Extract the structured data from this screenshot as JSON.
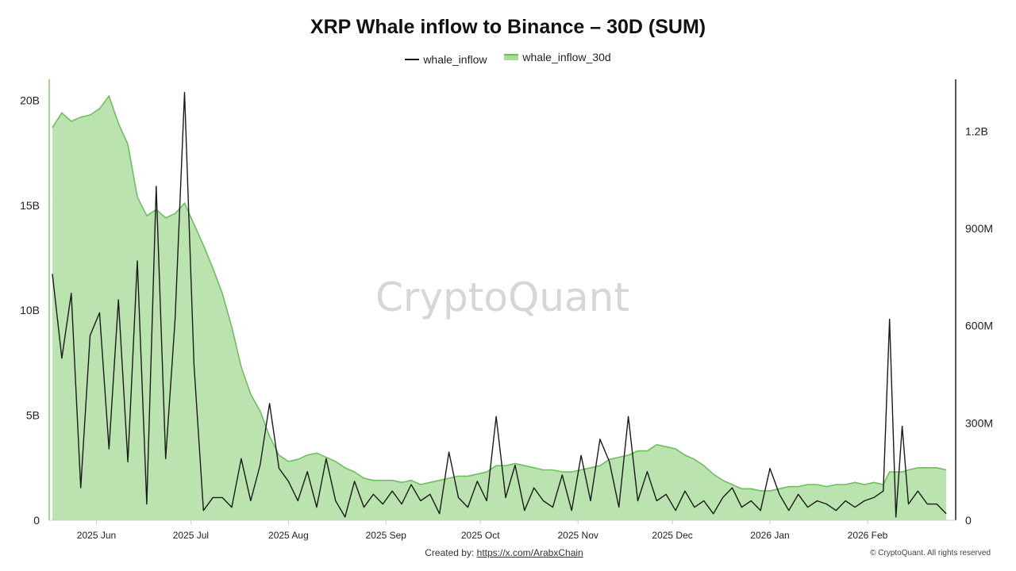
{
  "chart_data": {
    "type": "line",
    "title": "XRP Whale inflow to Binance – 30D (SUM)",
    "watermark": "CryptoQuant",
    "footer": {
      "created_by_label": "Created by:",
      "created_by_link": "https://x.com/ArabxChain",
      "copyright": "© CryptoQuant. All rights reserved"
    },
    "x_ticks": [
      "2025 Jun",
      "2025 Jul",
      "2025 Aug",
      "2025 Sep",
      "2025 Oct",
      "2025 Nov",
      "2025 Dec",
      "2026 Jan",
      "2026 Feb"
    ],
    "left_axis": {
      "ticks": [
        "0",
        "5B",
        "10B",
        "15B",
        "20B"
      ],
      "ylim": [
        0,
        21000000000
      ]
    },
    "right_axis": {
      "ticks": [
        "0",
        "300M",
        "600M",
        "900M",
        "1.2B"
      ],
      "ylim": [
        0,
        1360000000
      ]
    },
    "legend_position": "top-center",
    "grid": false,
    "colors": {
      "line": "#1a1a1a",
      "area_fill": "#bbe3b0",
      "area_stroke": "#6cc05c",
      "axis": "#111111"
    },
    "series": [
      {
        "name": "whale_inflow",
        "axis": "right",
        "x": [
          "2025-05-18",
          "2025-05-21",
          "2025-05-24",
          "2025-05-27",
          "2025-05-30",
          "2025-06-02",
          "2025-06-05",
          "2025-06-08",
          "2025-06-11",
          "2025-06-14",
          "2025-06-17",
          "2025-06-20",
          "2025-06-23",
          "2025-06-26",
          "2025-06-29",
          "2025-07-02",
          "2025-07-05",
          "2025-07-08",
          "2025-07-11",
          "2025-07-14",
          "2025-07-17",
          "2025-07-20",
          "2025-07-23",
          "2025-07-26",
          "2025-07-29",
          "2025-08-01",
          "2025-08-04",
          "2025-08-07",
          "2025-08-10",
          "2025-08-13",
          "2025-08-16",
          "2025-08-19",
          "2025-08-22",
          "2025-08-25",
          "2025-08-28",
          "2025-08-31",
          "2025-09-03",
          "2025-09-06",
          "2025-09-09",
          "2025-09-12",
          "2025-09-15",
          "2025-09-18",
          "2025-09-21",
          "2025-09-24",
          "2025-09-27",
          "2025-09-30",
          "2025-10-03",
          "2025-10-06",
          "2025-10-09",
          "2025-10-12",
          "2025-10-15",
          "2025-10-18",
          "2025-10-21",
          "2025-10-24",
          "2025-10-27",
          "2025-10-30",
          "2025-11-02",
          "2025-11-05",
          "2025-11-08",
          "2025-11-11",
          "2025-11-14",
          "2025-11-17",
          "2025-11-20",
          "2025-11-23",
          "2025-11-26",
          "2025-11-29",
          "2025-12-02",
          "2025-12-05",
          "2025-12-08",
          "2025-12-11",
          "2025-12-14",
          "2025-12-17",
          "2025-12-20",
          "2025-12-23",
          "2025-12-26",
          "2025-12-29",
          "2026-01-01",
          "2026-01-04",
          "2026-01-07",
          "2026-01-10",
          "2026-01-13",
          "2026-01-16",
          "2026-01-19",
          "2026-01-22",
          "2026-01-25",
          "2026-01-28",
          "2026-01-31",
          "2026-02-03",
          "2026-02-06",
          "2026-02-08",
          "2026-02-10",
          "2026-02-12",
          "2026-02-14",
          "2026-02-17",
          "2026-02-20",
          "2026-02-23",
          "2026-02-26"
        ],
        "values": [
          760000000,
          500000000,
          700000000,
          100000000,
          570000000,
          640000000,
          220000000,
          680000000,
          180000000,
          800000000,
          50000000,
          1030000000,
          190000000,
          620000000,
          1320000000,
          480000000,
          30000000,
          70000000,
          70000000,
          40000000,
          190000000,
          60000000,
          170000000,
          360000000,
          160000000,
          120000000,
          60000000,
          150000000,
          40000000,
          190000000,
          60000000,
          10000000,
          120000000,
          40000000,
          80000000,
          50000000,
          90000000,
          50000000,
          110000000,
          60000000,
          80000000,
          20000000,
          210000000,
          70000000,
          40000000,
          120000000,
          60000000,
          320000000,
          70000000,
          170000000,
          30000000,
          100000000,
          60000000,
          40000000,
          140000000,
          30000000,
          200000000,
          60000000,
          250000000,
          180000000,
          40000000,
          320000000,
          60000000,
          150000000,
          60000000,
          80000000,
          30000000,
          90000000,
          40000000,
          60000000,
          20000000,
          70000000,
          100000000,
          40000000,
          60000000,
          30000000,
          160000000,
          80000000,
          30000000,
          80000000,
          40000000,
          60000000,
          50000000,
          30000000,
          60000000,
          40000000,
          60000000,
          70000000,
          90000000,
          620000000,
          10000000,
          290000000,
          50000000,
          90000000,
          50000000,
          50000000,
          20000000
        ]
      },
      {
        "name": "whale_inflow_30d",
        "axis": "left",
        "x": [
          "2025-05-18",
          "2025-05-21",
          "2025-05-24",
          "2025-05-27",
          "2025-05-30",
          "2025-06-02",
          "2025-06-05",
          "2025-06-08",
          "2025-06-11",
          "2025-06-14",
          "2025-06-17",
          "2025-06-20",
          "2025-06-23",
          "2025-06-26",
          "2025-06-29",
          "2025-07-02",
          "2025-07-05",
          "2025-07-08",
          "2025-07-11",
          "2025-07-14",
          "2025-07-17",
          "2025-07-20",
          "2025-07-23",
          "2025-07-26",
          "2025-07-29",
          "2025-08-01",
          "2025-08-04",
          "2025-08-07",
          "2025-08-10",
          "2025-08-13",
          "2025-08-16",
          "2025-08-19",
          "2025-08-22",
          "2025-08-25",
          "2025-08-28",
          "2025-08-31",
          "2025-09-03",
          "2025-09-06",
          "2025-09-09",
          "2025-09-12",
          "2025-09-15",
          "2025-09-18",
          "2025-09-21",
          "2025-09-24",
          "2025-09-27",
          "2025-09-30",
          "2025-10-03",
          "2025-10-06",
          "2025-10-09",
          "2025-10-12",
          "2025-10-15",
          "2025-10-18",
          "2025-10-21",
          "2025-10-24",
          "2025-10-27",
          "2025-10-30",
          "2025-11-02",
          "2025-11-05",
          "2025-11-08",
          "2025-11-11",
          "2025-11-14",
          "2025-11-17",
          "2025-11-20",
          "2025-11-23",
          "2025-11-26",
          "2025-11-29",
          "2025-12-02",
          "2025-12-05",
          "2025-12-08",
          "2025-12-11",
          "2025-12-14",
          "2025-12-17",
          "2025-12-20",
          "2025-12-23",
          "2025-12-26",
          "2025-12-29",
          "2026-01-01",
          "2026-01-04",
          "2026-01-07",
          "2026-01-10",
          "2026-01-13",
          "2026-01-16",
          "2026-01-19",
          "2026-01-22",
          "2026-01-25",
          "2026-01-28",
          "2026-01-31",
          "2026-02-03",
          "2026-02-06",
          "2026-02-08",
          "2026-02-10",
          "2026-02-12",
          "2026-02-14",
          "2026-02-17",
          "2026-02-20",
          "2026-02-23",
          "2026-02-26"
        ],
        "values": [
          18700000000,
          19400000000,
          19000000000,
          19200000000,
          19300000000,
          19600000000,
          20200000000,
          18900000000,
          17900000000,
          15400000000,
          14500000000,
          14800000000,
          14400000000,
          14600000000,
          15100000000,
          14100000000,
          13100000000,
          12000000000,
          10800000000,
          9200000000,
          7300000000,
          6000000000,
          5200000000,
          4000000000,
          3100000000,
          2800000000,
          2900000000,
          3100000000,
          3200000000,
          3000000000,
          2800000000,
          2500000000,
          2300000000,
          2000000000,
          1900000000,
          1900000000,
          1900000000,
          1800000000,
          1900000000,
          1700000000,
          1800000000,
          1900000000,
          2000000000,
          2100000000,
          2100000000,
          2200000000,
          2300000000,
          2600000000,
          2600000000,
          2700000000,
          2600000000,
          2500000000,
          2400000000,
          2400000000,
          2300000000,
          2300000000,
          2400000000,
          2500000000,
          2600000000,
          2900000000,
          3000000000,
          3100000000,
          3300000000,
          3300000000,
          3600000000,
          3500000000,
          3400000000,
          3100000000,
          2900000000,
          2600000000,
          2200000000,
          1900000000,
          1700000000,
          1500000000,
          1500000000,
          1400000000,
          1400000000,
          1500000000,
          1600000000,
          1600000000,
          1700000000,
          1700000000,
          1600000000,
          1700000000,
          1700000000,
          1800000000,
          1700000000,
          1800000000,
          1700000000,
          2300000000,
          2300000000,
          2300000000,
          2400000000,
          2500000000,
          2500000000,
          2500000000,
          2400000000
        ]
      }
    ]
  }
}
